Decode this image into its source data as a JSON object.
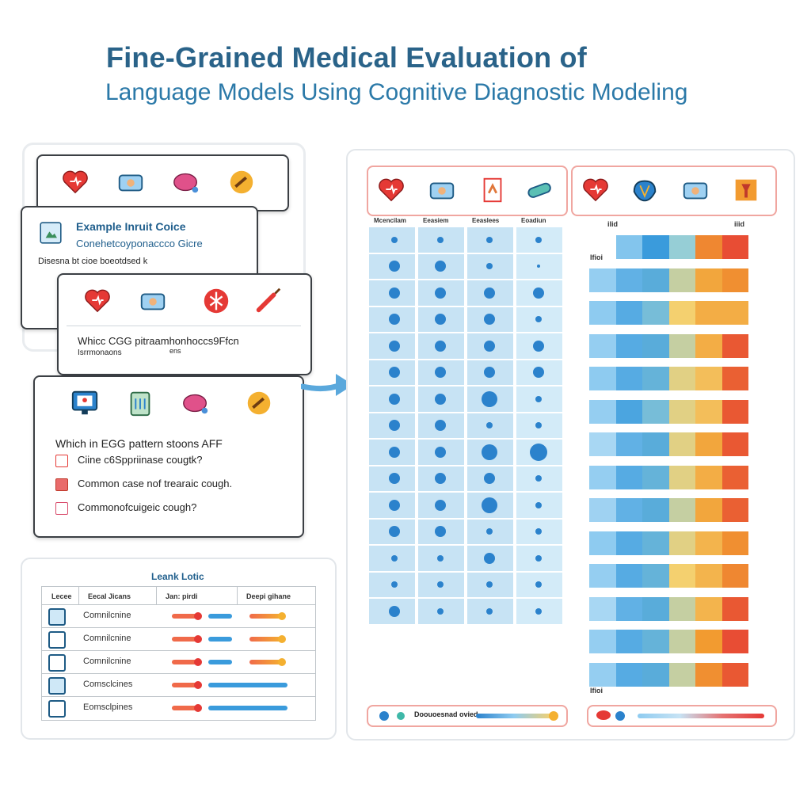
{
  "title": {
    "line1": "Fine-Grained Medical Evaluation of",
    "line2": "Language Models Using Cognitive Diagnostic Modeling"
  },
  "cards": {
    "card1": {
      "icons": [
        "heart-icon",
        "medical-bag-icon",
        "stomach-icon",
        "bone-icon"
      ]
    },
    "card2": {
      "heading": "Example Inruit Coice",
      "subheading": "Conehetcoyponaccco Gicre",
      "line": "Disesna bt cioe boeotdsed k"
    },
    "card3": {
      "icons": [
        "heart-icon",
        "medical-bag-icon",
        "lung-icon",
        "syringe-icon"
      ],
      "question": "Whicc CGG pitraamhonhoccs9Ffcn",
      "sub": "Isrrmonaons",
      "sub2": "ens"
    },
    "card4": {
      "icons": [
        "monitor-icon",
        "clipboard-icon",
        "stomach-icon",
        "bone-icon"
      ],
      "question": "Which in EGG pattern stoons AFF",
      "options": [
        "Ciine c6Sppriinase cougtk?",
        "Common case nof trearaic cough.",
        "Commonofcuigeic cough?"
      ]
    },
    "card5": {
      "title": "Leank Lotic",
      "headers": [
        "Lecee",
        "Eecal Jicans",
        "Jan: pirdi",
        "Deepi gihane"
      ],
      "rows": [
        "Comnilcnine",
        "Comnilcnine",
        "Comnilcnine",
        "Comsclcines",
        "Eomsclpines"
      ]
    }
  },
  "left_panel": {
    "icons": [
      "heart-icon",
      "medical-bag-icon",
      "clipboard-icon",
      "pill-icon"
    ],
    "col_headers": [
      "Mcencilam",
      "Eeasiem",
      "Eeaslees",
      "Eoadiun"
    ],
    "dot_sizes": [
      [
        4,
        4,
        4,
        4
      ],
      [
        7,
        7,
        4,
        2
      ],
      [
        7,
        7,
        7,
        7
      ],
      [
        7,
        7,
        7,
        4
      ],
      [
        7,
        7,
        7,
        7
      ],
      [
        7,
        7,
        7,
        7
      ],
      [
        7,
        7,
        10,
        4
      ],
      [
        7,
        7,
        4,
        4
      ],
      [
        7,
        7,
        10,
        11
      ],
      [
        7,
        7,
        7,
        4
      ],
      [
        7,
        7,
        10,
        4
      ],
      [
        7,
        7,
        4,
        4
      ],
      [
        4,
        4,
        7,
        4
      ],
      [
        4,
        4,
        4,
        4
      ],
      [
        7,
        4,
        4,
        4
      ]
    ],
    "legend_label": "Doouoesnad ovied"
  },
  "right_panel": {
    "icons": [
      "heart-icon",
      "brain-icon",
      "medical-bag-icon",
      "flask-icon"
    ],
    "col_labels": [
      "ilid",
      "iiid"
    ],
    "row_label_top": "Ifioi",
    "row_label_bottom": "Ifioi",
    "heat_rows": [
      [
        0.1,
        0.22,
        0.35,
        0.5,
        0.8,
        0.95
      ],
      [
        0.18,
        0.28,
        0.4,
        0.55,
        0.72,
        0.78
      ],
      [
        0.2,
        0.3,
        0.45,
        0.6,
        0.7,
        0.7
      ],
      [
        0.18,
        0.3,
        0.4,
        0.55,
        0.7,
        0.92
      ],
      [
        0.2,
        0.3,
        0.42,
        0.58,
        0.65,
        0.9
      ],
      [
        0.18,
        0.32,
        0.45,
        0.58,
        0.65,
        0.92
      ],
      [
        0.12,
        0.28,
        0.4,
        0.58,
        0.72,
        0.92
      ],
      [
        0.18,
        0.3,
        0.42,
        0.58,
        0.7,
        0.9
      ],
      [
        0.15,
        0.28,
        0.4,
        0.55,
        0.72,
        0.9
      ],
      [
        0.2,
        0.3,
        0.42,
        0.58,
        0.68,
        0.78
      ],
      [
        0.18,
        0.3,
        0.42,
        0.6,
        0.68,
        0.8
      ],
      [
        0.12,
        0.28,
        0.4,
        0.55,
        0.68,
        0.92
      ],
      [
        0.18,
        0.3,
        0.42,
        0.55,
        0.75,
        0.95
      ],
      [
        0.18,
        0.3,
        0.4,
        0.55,
        0.78,
        0.92
      ]
    ]
  },
  "colors": {
    "accent": "#2a6389",
    "dot": "#2b82cc",
    "cell": "#c7e3f4",
    "legend_border": "#f0a6a0"
  }
}
